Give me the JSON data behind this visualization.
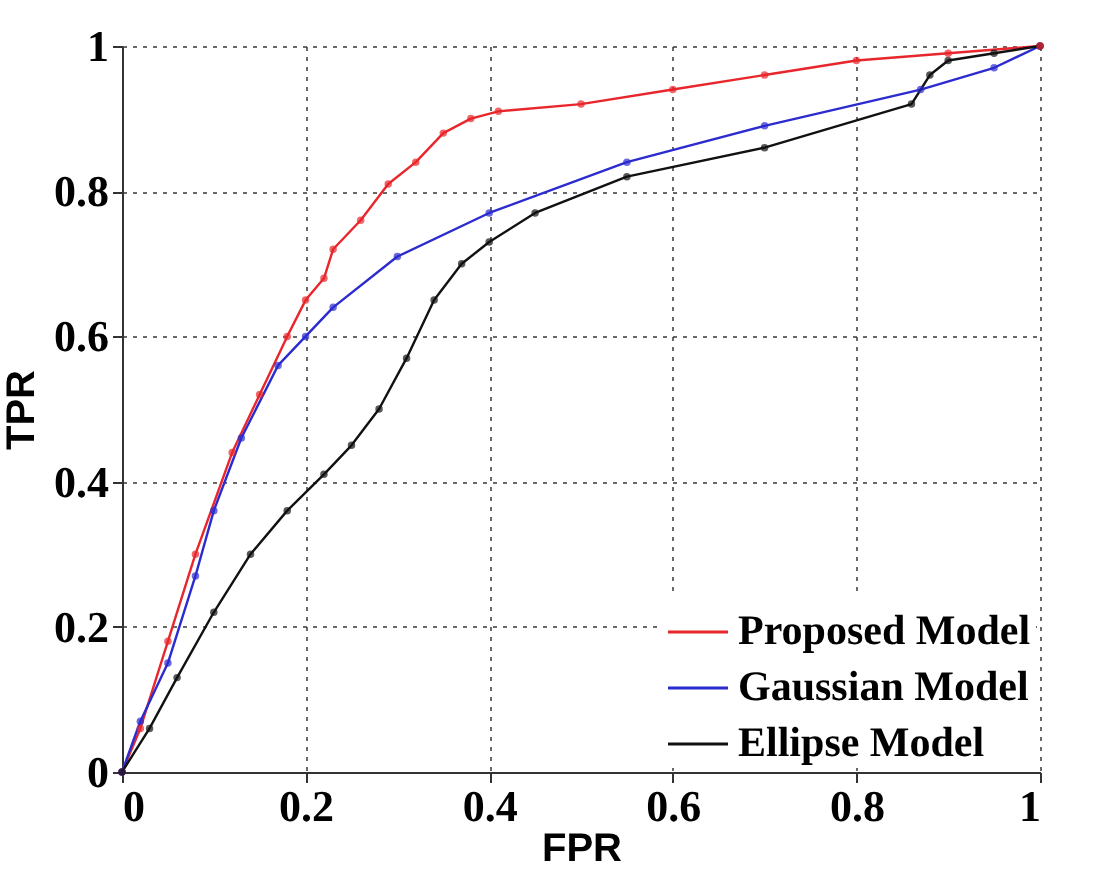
{
  "chart_data": {
    "type": "line",
    "xlabel": "FPR",
    "ylabel": "TPR",
    "xlim": [
      0,
      1
    ],
    "ylim": [
      0,
      1
    ],
    "xticks": [
      {
        "value": 0,
        "label": "0"
      },
      0.2,
      0.4,
      0.6,
      0.8,
      {
        "value": 1,
        "label": "1"
      }
    ],
    "yticks": [
      {
        "value": 0,
        "label": "0"
      },
      0.2,
      0.4,
      0.6,
      0.8,
      {
        "value": 1,
        "label": "1"
      }
    ],
    "grid": true,
    "legend": "bottom right",
    "marker": "circle",
    "line_style": "solid",
    "series": [
      {
        "name": "Proposed Model",
        "color": "#e8262b",
        "x": [
          0,
          0.02,
          0.05,
          0.08,
          0.12,
          0.15,
          0.18,
          0.2,
          0.22,
          0.23,
          0.26,
          0.29,
          0.32,
          0.35,
          0.38,
          0.41,
          0.5,
          0.6,
          0.7,
          0.8,
          0.9,
          1
        ],
        "values": [
          0,
          0.06,
          0.18,
          0.3,
          0.44,
          0.52,
          0.6,
          0.65,
          0.68,
          0.72,
          0.76,
          0.81,
          0.84,
          0.88,
          0.9,
          0.91,
          0.92,
          0.94,
          0.96,
          0.98,
          0.99,
          1
        ]
      },
      {
        "name": "Gaussian Model",
        "color": "#2b2bd0",
        "x": [
          0,
          0.02,
          0.05,
          0.08,
          0.1,
          0.13,
          0.17,
          0.2,
          0.23,
          0.3,
          0.4,
          0.55,
          0.7,
          0.87,
          0.95,
          1
        ],
        "values": [
          0,
          0.07,
          0.15,
          0.27,
          0.36,
          0.46,
          0.56,
          0.6,
          0.64,
          0.71,
          0.77,
          0.84,
          0.89,
          0.94,
          0.97,
          1
        ]
      },
      {
        "name": "Ellipse Model",
        "color": "#111111",
        "x": [
          0,
          0.03,
          0.06,
          0.1,
          0.14,
          0.18,
          0.22,
          0.25,
          0.28,
          0.31,
          0.34,
          0.37,
          0.4,
          0.45,
          0.55,
          0.7,
          0.86,
          0.88,
          0.9,
          0.95,
          1
        ],
        "values": [
          0,
          0.06,
          0.13,
          0.22,
          0.3,
          0.36,
          0.41,
          0.45,
          0.5,
          0.57,
          0.65,
          0.7,
          0.73,
          0.77,
          0.82,
          0.86,
          0.92,
          0.96,
          0.98,
          0.99,
          1
        ]
      }
    ]
  }
}
